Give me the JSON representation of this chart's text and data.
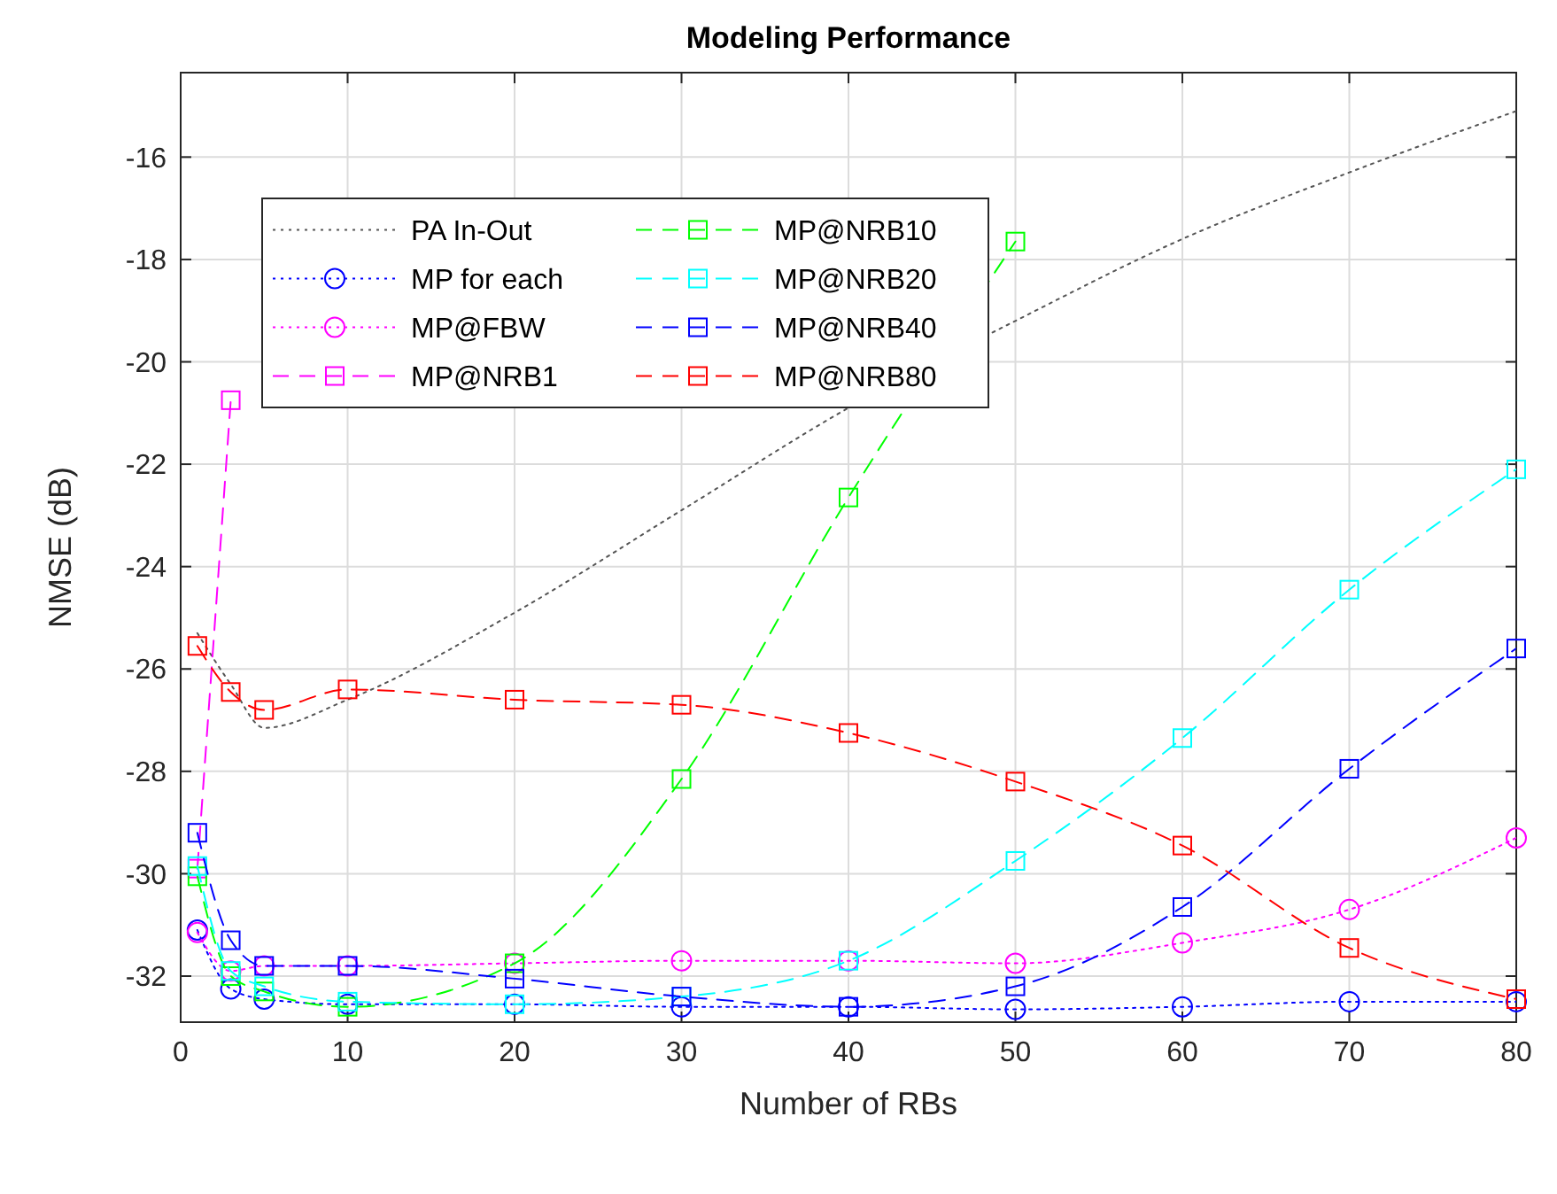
{
  "chart_data": {
    "type": "line",
    "title": "Modeling Performance",
    "xlabel": "Number of RBs",
    "ylabel": "NMSE (dB)",
    "x": [
      1,
      3,
      5,
      10,
      20,
      30,
      40,
      50,
      60,
      70,
      80
    ],
    "xlim": [
      0,
      80
    ],
    "xticks": [
      0,
      10,
      20,
      30,
      40,
      50,
      60,
      70,
      80
    ],
    "ylim": [
      -32.9,
      -14.35
    ],
    "yticks": [
      -32,
      -30,
      -28,
      -26,
      -24,
      -22,
      -20,
      -18,
      -16
    ],
    "grid": true,
    "legend": "top left",
    "series": [
      {
        "name": "PA In-Out",
        "color": "#555555",
        "line_style": "dotted",
        "marker": "none",
        "values": [
          -25.3,
          -26.3,
          -27.15,
          -26.6,
          -24.9,
          -22.9,
          -20.9,
          -19.2,
          -17.6,
          -16.3,
          -15.1
        ]
      },
      {
        "name": "MP for each",
        "color": "#0000ff",
        "line_style": "dotted",
        "marker": "circle",
        "values": [
          -31.1,
          -32.25,
          -32.45,
          -32.55,
          -32.55,
          -32.6,
          -32.6,
          -32.65,
          -32.6,
          -32.5,
          -32.5
        ]
      },
      {
        "name": "MP@FBW",
        "color": "#ff00ff",
        "line_style": "dotted",
        "marker": "circle",
        "values": [
          -31.15,
          -31.9,
          -31.8,
          -31.8,
          -31.75,
          -31.7,
          -31.7,
          -31.75,
          -31.35,
          -30.7,
          -29.3
        ]
      },
      {
        "name": "MP@NRB1",
        "color": "#ff00ff",
        "line_style": "dashed",
        "marker": "square",
        "x": [
          1,
          3
        ],
        "values": [
          -29.9,
          -20.75
        ]
      },
      {
        "name": "MP@NRB10",
        "color": "#00ff00",
        "line_style": "dashed",
        "marker": "square",
        "x": [
          1,
          3,
          5,
          10,
          20,
          30,
          40,
          50
        ],
        "values": [
          -30.05,
          -32.0,
          -32.3,
          -32.6,
          -31.75,
          -28.15,
          -22.65,
          -17.65
        ]
      },
      {
        "name": "MP@NRB20",
        "color": "#00ffff",
        "line_style": "dashed",
        "marker": "square",
        "values": [
          -29.85,
          -31.9,
          -32.2,
          -32.5,
          -32.55,
          -32.4,
          -31.7,
          -29.75,
          -27.35,
          -24.45,
          -22.1
        ]
      },
      {
        "name": "MP@NRB40",
        "color": "#0000ff",
        "line_style": "dashed",
        "marker": "square",
        "values": [
          -29.2,
          -31.3,
          -31.8,
          -31.8,
          -32.05,
          -32.4,
          -32.6,
          -32.2,
          -30.65,
          -27.95,
          -25.6
        ]
      },
      {
        "name": "MP@NRB80",
        "color": "#ff0000",
        "line_style": "dashed",
        "marker": "square",
        "values": [
          -25.55,
          -26.45,
          -26.8,
          -26.4,
          -26.6,
          -26.7,
          -27.25,
          -28.2,
          -29.45,
          -31.45,
          -32.45
        ]
      }
    ]
  }
}
